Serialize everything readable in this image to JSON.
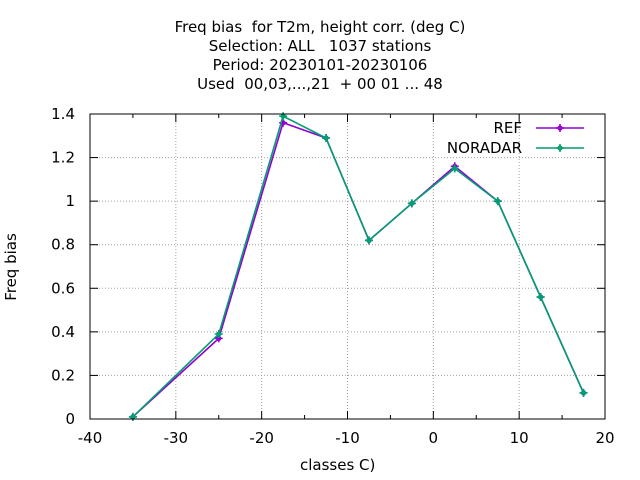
{
  "chart_data": {
    "type": "line",
    "title_lines": [
      "Freq bias  for T2m, height corr. (deg C)",
      "Selection: ALL   1037 stations",
      "Period: 20230101-20230106",
      "Used  00,03,...,21  + 00 01 ... 48"
    ],
    "xlabel": "classes C)",
    "ylabel": "Freq bias",
    "xlim": [
      -40,
      20
    ],
    "ylim": [
      0,
      1.4
    ],
    "xticks": [
      -40,
      -30,
      -20,
      -10,
      0,
      10,
      20
    ],
    "yticks": [
      0,
      0.2,
      0.4,
      0.6,
      0.8,
      1,
      1.2,
      1.4
    ],
    "xtick_labels": [
      "-40",
      "-30",
      "-20",
      "-10",
      "0",
      "10",
      "20"
    ],
    "ytick_labels": [
      "0",
      "0.2",
      "0.4",
      "0.6",
      "0.8",
      "1",
      "1.2",
      "1.4"
    ],
    "grid": true,
    "legend_position": "top-right",
    "x": [
      -35,
      -25,
      -17.5,
      -12.5,
      -7.5,
      -2.5,
      2.5,
      7.5,
      12.5,
      17.5
    ],
    "series": [
      {
        "name": "REF",
        "color": "#9400d3",
        "values": [
          0.01,
          0.37,
          1.36,
          1.29,
          0.82,
          0.99,
          1.16,
          1.0,
          0.56,
          0.12
        ]
      },
      {
        "name": "NORADAR",
        "color": "#009e73",
        "values": [
          0.01,
          0.39,
          1.39,
          1.29,
          0.82,
          0.99,
          1.15,
          1.0,
          0.56,
          0.12
        ]
      }
    ]
  }
}
